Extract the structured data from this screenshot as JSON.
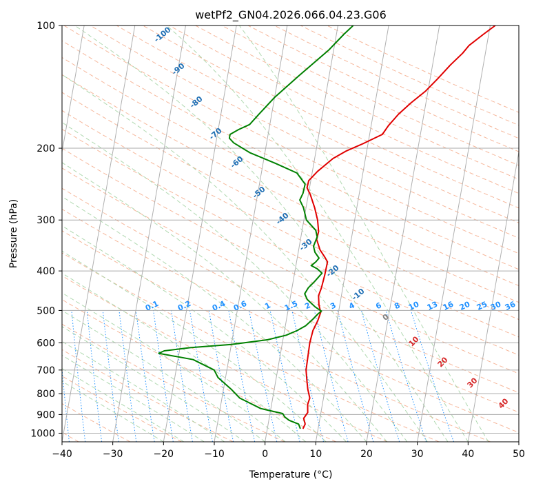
{
  "chart_data": {
    "type": "line",
    "title": "wetPf2_GN04.2026.066.04.23.G06",
    "xlabel": "Temperature (°C)",
    "ylabel": "Pressure (hPa)",
    "xlim": [
      -40,
      50
    ],
    "ylim": [
      1050,
      100
    ],
    "y_scale": "log",
    "grid": true,
    "x_ticks": [
      "−40",
      "−30",
      "−20",
      "−10",
      "0",
      "10",
      "20",
      "30",
      "40",
      "50"
    ],
    "y_ticks": [
      "100",
      "200",
      "300",
      "400",
      "500",
      "600",
      "700",
      "800",
      "900",
      "1000"
    ],
    "series": [
      {
        "color": "#e00000",
        "points": [
          [
            7,
            975
          ],
          [
            7.3,
            950
          ],
          [
            6.8,
            920
          ],
          [
            7.4,
            890
          ],
          [
            7.1,
            850
          ],
          [
            7.3,
            820
          ],
          [
            6.6,
            780
          ],
          [
            6.1,
            740
          ],
          [
            5.6,
            700
          ],
          [
            5.5,
            650
          ],
          [
            5.4,
            600
          ],
          [
            5.6,
            560
          ],
          [
            6.2,
            530
          ],
          [
            6.5,
            505
          ],
          [
            5.9,
            485
          ],
          [
            5.5,
            460
          ],
          [
            5.8,
            440
          ],
          [
            6.0,
            410
          ],
          [
            6.1,
            380
          ],
          [
            5.4,
            370
          ],
          [
            4.2,
            355
          ],
          [
            3.2,
            335
          ],
          [
            3.3,
            320
          ],
          [
            2.7,
            300
          ],
          [
            1.7,
            280
          ],
          [
            0.4,
            260
          ],
          [
            -0.5,
            250
          ],
          [
            -0.4,
            240
          ],
          [
            1,
            228
          ],
          [
            3.6,
            212
          ],
          [
            6,
            203
          ],
          [
            9,
            195
          ],
          [
            12.5,
            185
          ],
          [
            13.4,
            176
          ],
          [
            15,
            165
          ],
          [
            17,
            155
          ],
          [
            19.5,
            145
          ],
          [
            21.5,
            135
          ],
          [
            23.5,
            125
          ],
          [
            25.5,
            117
          ],
          [
            26.5,
            112
          ],
          [
            29,
            105
          ],
          [
            31,
            100
          ]
        ]
      },
      {
        "color": "#008000",
        "points": [
          [
            6.5,
            975
          ],
          [
            6,
            950
          ],
          [
            4,
            930
          ],
          [
            3,
            912
          ],
          [
            2.5,
            895
          ],
          [
            -2,
            870
          ],
          [
            -6.5,
            820
          ],
          [
            -8.5,
            780
          ],
          [
            -11.5,
            730
          ],
          [
            -12.5,
            700
          ],
          [
            -17,
            660
          ],
          [
            -24,
            637
          ],
          [
            -23,
            628
          ],
          [
            -18,
            617
          ],
          [
            -10,
            606
          ],
          [
            -3,
            590
          ],
          [
            0.5,
            575
          ],
          [
            2.5,
            560
          ],
          [
            4,
            545
          ],
          [
            5.2,
            525
          ],
          [
            6,
            510
          ],
          [
            6.6,
            502
          ],
          [
            5.2,
            490
          ],
          [
            3.4,
            470
          ],
          [
            2.7,
            455
          ],
          [
            3.2,
            440
          ],
          [
            4.2,
            425
          ],
          [
            5.4,
            405
          ],
          [
            4.3,
            395
          ],
          [
            3.0,
            388
          ],
          [
            3.8,
            380
          ],
          [
            4.3,
            372
          ],
          [
            3.3,
            360
          ],
          [
            2.8,
            348
          ],
          [
            3.2,
            330
          ],
          [
            2.7,
            318
          ],
          [
            0.5,
            300
          ],
          [
            -0.5,
            280
          ],
          [
            -1.5,
            268
          ],
          [
            -1.1,
            258
          ],
          [
            -1,
            245
          ],
          [
            -3,
            230
          ],
          [
            -7.5,
            218
          ],
          [
            -13,
            205
          ],
          [
            -16.5,
            194
          ],
          [
            -17.5,
            189
          ],
          [
            -17.5,
            185
          ],
          [
            -16,
            180
          ],
          [
            -14,
            175
          ],
          [
            -12.5,
            165
          ],
          [
            -10,
            150
          ],
          [
            -6,
            133
          ],
          [
            -1,
            115
          ],
          [
            1.5,
            105
          ],
          [
            3,
            100
          ]
        ]
      }
    ],
    "isotherm_step": 10,
    "dry_adiabat_labels": [
      "-100",
      "-90",
      "-80",
      "-70",
      "-60",
      "-50",
      "-40",
      "-30",
      "-20",
      "-10",
      "0",
      "10",
      "20",
      "30",
      "40"
    ],
    "moist_adiabat_labels": [
      "10",
      "20",
      "30",
      "40"
    ],
    "mixing_ratio_labels": [
      "0.1",
      "0.2",
      "0.4",
      "0.6",
      "1",
      "1.5",
      "2",
      "3",
      "4",
      "6",
      "8",
      "10",
      "13",
      "16",
      "20",
      "25",
      "30",
      "36"
    ],
    "colors": {
      "isotherms": "#b0b0b0",
      "dry_adiabats": "#f4a582",
      "moist_adiabats": "#a6d4a6",
      "mixing_ratio": "#1e90ff",
      "grid": "#aaaaaa"
    }
  }
}
